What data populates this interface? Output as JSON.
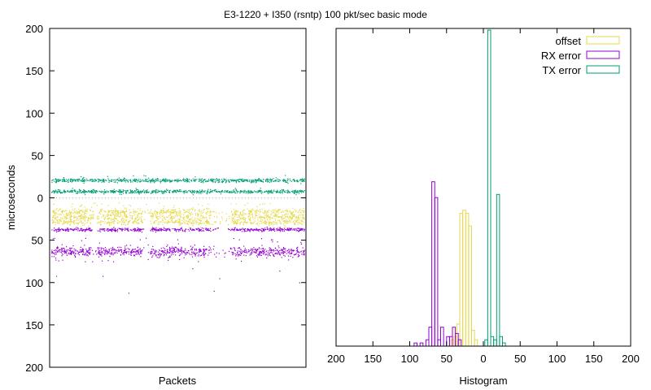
{
  "title": "E3-1220 + I350 (rsntp) 100 pkt/sec basic mode",
  "colors": {
    "offset": "#e6d94a",
    "rx_error": "#9400d3",
    "tx_error": "#009e73",
    "grid": "#bbbbbb"
  },
  "chart_data": [
    {
      "type": "scatter",
      "title": "",
      "xlabel": "Packets",
      "ylabel": "microseconds",
      "ylim": [
        -200,
        200
      ],
      "yticks": [
        200,
        150,
        100,
        50,
        0,
        50,
        100,
        150,
        200
      ],
      "yticks_values": [
        200,
        150,
        100,
        50,
        0,
        -50,
        -100,
        -150,
        -200
      ],
      "grid": "dotted horizontal line at 0",
      "series": [
        {
          "name": "TX error",
          "bands": [
            {
              "center": 21,
              "spread": 1.5,
              "outliers": [
                27,
                17
              ]
            },
            {
              "center": 8,
              "spread": 1.5,
              "outliers": [
                12,
                4
              ]
            }
          ]
        },
        {
          "name": "offset",
          "bands": [
            {
              "center": -16,
              "spread": 2.5
            },
            {
              "center": -22,
              "spread": 2.5
            },
            {
              "center": -28,
              "spread": 2.5
            }
          ],
          "range": [
            -35,
            -5
          ]
        },
        {
          "name": "RX error",
          "bands": [
            {
              "center": -37,
              "spread": 1.5
            },
            {
              "center": -63,
              "spread": 4
            }
          ],
          "outliers": [
            -93,
            -112,
            -85,
            -96
          ]
        }
      ]
    },
    {
      "type": "histogram",
      "title": "",
      "xlabel": "Histogram",
      "xticks": [
        200,
        150,
        100,
        50,
        0,
        50,
        100,
        150,
        200
      ],
      "xticks_values": [
        -200,
        -150,
        -100,
        -50,
        0,
        50,
        100,
        150,
        200
      ],
      "xlim": [
        -200,
        200
      ],
      "legend": "top-right",
      "series": [
        {
          "name": "offset",
          "bins": [
            {
              "x": -42,
              "count": 0.02
            },
            {
              "x": -38,
              "count": 0.03
            },
            {
              "x": -34,
              "count": 0.07
            },
            {
              "x": -30,
              "count": 0.42
            },
            {
              "x": -26,
              "count": 0.43
            },
            {
              "x": -22,
              "count": 0.42
            },
            {
              "x": -18,
              "count": 0.38
            },
            {
              "x": -14,
              "count": 0.05
            },
            {
              "x": -10,
              "count": 0.02
            }
          ]
        },
        {
          "name": "RX error",
          "bins": [
            {
              "x": -92,
              "count": 0.01
            },
            {
              "x": -84,
              "count": 0.01
            },
            {
              "x": -76,
              "count": 0.02
            },
            {
              "x": -72,
              "count": 0.06
            },
            {
              "x": -68,
              "count": 0.52
            },
            {
              "x": -64,
              "count": 0.47
            },
            {
              "x": -60,
              "count": 0.02
            },
            {
              "x": -56,
              "count": 0.06
            },
            {
              "x": -48,
              "count": 0.03
            },
            {
              "x": -44,
              "count": 0.03
            },
            {
              "x": -40,
              "count": 0.06
            },
            {
              "x": -36,
              "count": 0.04
            },
            {
              "x": -32,
              "count": 0.02
            }
          ]
        },
        {
          "name": "TX error",
          "bins": [
            {
              "x": 4,
              "count": 0.02
            },
            {
              "x": 8,
              "count": 1.0
            },
            {
              "x": 12,
              "count": 0.03
            },
            {
              "x": 16,
              "count": 0.02
            },
            {
              "x": 20,
              "count": 0.48
            },
            {
              "x": 24,
              "count": 0.03
            },
            {
              "x": 28,
              "count": 0.01
            }
          ]
        }
      ]
    }
  ]
}
